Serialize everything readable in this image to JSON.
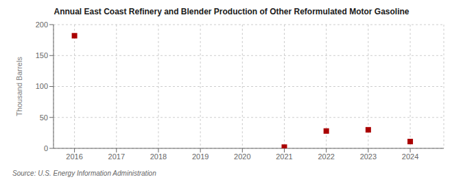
{
  "chart_data": {
    "type": "scatter",
    "title": "Annual East Coast Refinery and Blender Production of Other Reformulated Motor Gasoline",
    "ylabel": "Thousand Barrels",
    "annotations": [
      "Source: U.S. Energy Information Administration"
    ],
    "x": [
      2016,
      2021,
      2022,
      2023,
      2024
    ],
    "values": [
      182,
      2,
      28,
      30,
      11
    ],
    "color": "#aa0000",
    "marker": "square",
    "xlim": [
      2015.5,
      2024.8
    ],
    "ylim": [
      0,
      200
    ],
    "xticks": [
      2016,
      2017,
      2018,
      2019,
      2020,
      2021,
      2022,
      2023,
      2024
    ],
    "yticks": [
      0,
      50,
      100,
      150,
      200
    ],
    "grid": true
  }
}
